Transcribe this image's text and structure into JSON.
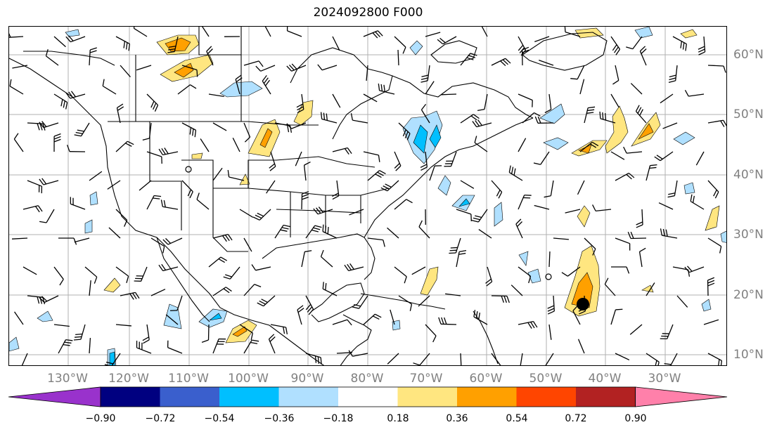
{
  "title": "2024092800 F000",
  "lat_labels": [
    "60°N",
    "50°N",
    "40°N",
    "30°N",
    "20°N",
    "10°N"
  ],
  "lon_labels": [
    "130°W",
    "120°W",
    "110°W",
    "100°W",
    "90°W",
    "80°W",
    "70°W",
    "60°W",
    "50°W",
    "40°W",
    "30°W"
  ],
  "colorbar": {
    "colors": [
      "#9932cc",
      "#000080",
      "#3a5fcd",
      "#00bfff",
      "#b0e0ff",
      "#ffffff",
      "#ffe680",
      "#ffa000",
      "#ff4500",
      "#b22222",
      "#ff80aa"
    ],
    "tick_labels": [
      "−0.90",
      "−0.72",
      "−0.54",
      "−0.36",
      "−0.18",
      "0.18",
      "0.36",
      "0.54",
      "0.72",
      "0.90"
    ]
  },
  "colors": {
    "grid": "#b0b0b0",
    "coast": "#000000",
    "tick_label": "#808080"
  }
}
